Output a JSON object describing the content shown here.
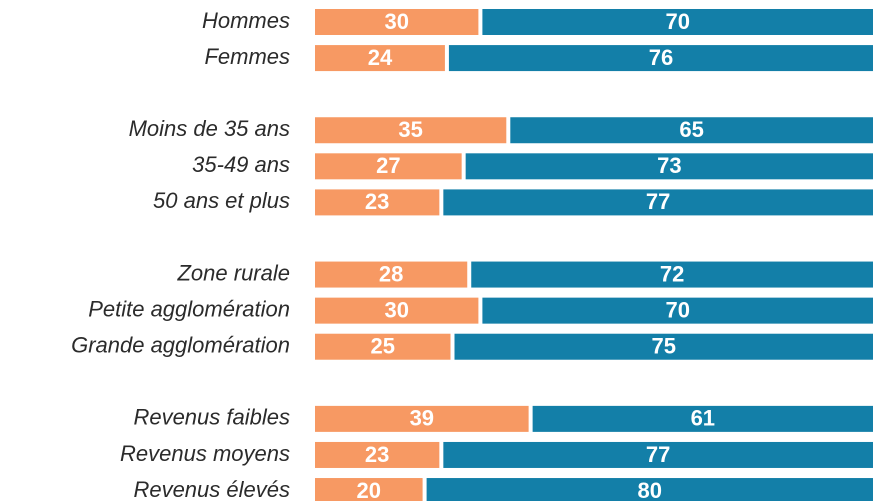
{
  "chart_data": {
    "type": "stacked-barh",
    "categories": [
      "Hommes",
      "Femmes",
      null,
      "Moins de 35 ans",
      "35-49 ans",
      "50 ans et plus",
      null,
      "Zone rurale",
      "Petite agglomération",
      "Grande agglomération",
      null,
      "Revenus faibles",
      "Revenus moyens",
      "Revenus élevés"
    ],
    "series": [
      {
        "color": "#f79963",
        "values": [
          30,
          24,
          null,
          35,
          27,
          23,
          null,
          28,
          30,
          25,
          null,
          39,
          23,
          20
        ]
      },
      {
        "color": "#137fa8",
        "values": [
          70,
          76,
          null,
          65,
          73,
          77,
          null,
          72,
          70,
          75,
          null,
          61,
          77,
          80
        ]
      }
    ],
    "xlim": [
      0,
      100
    ]
  }
}
